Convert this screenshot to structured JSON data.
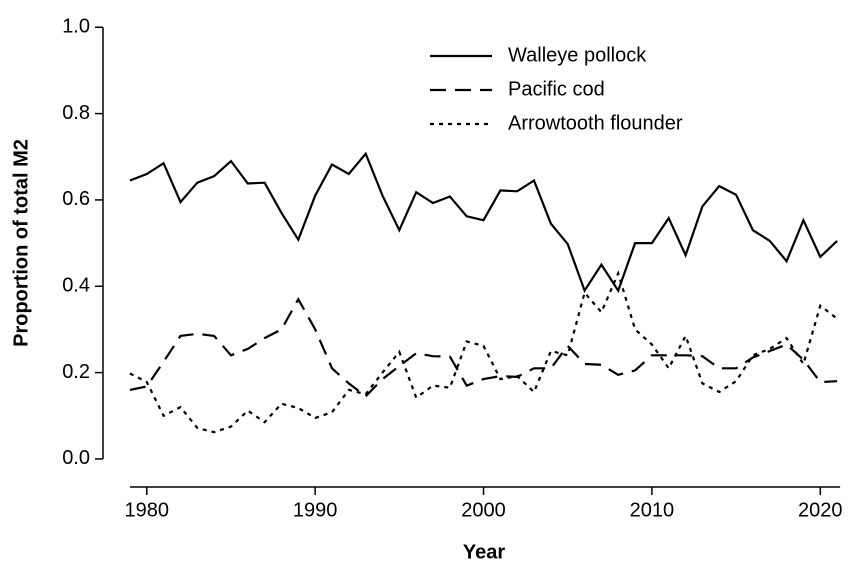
{
  "chart_data": {
    "type": "line",
    "xlabel": "Year",
    "ylabel": "Proportion of total M2",
    "x": [
      1979,
      1980,
      1981,
      1982,
      1983,
      1984,
      1985,
      1986,
      1987,
      1988,
      1989,
      1990,
      1991,
      1992,
      1993,
      1994,
      1995,
      1996,
      1997,
      1998,
      1999,
      2000,
      2001,
      2002,
      2003,
      2004,
      2005,
      2006,
      2007,
      2008,
      2009,
      2010,
      2011,
      2012,
      2013,
      2014,
      2015,
      2016,
      2017,
      2018,
      2019,
      2020,
      2021
    ],
    "series": [
      {
        "name": "Walleye pollock",
        "color": "#000000",
        "linestyle": "solid",
        "values": [
          0.645,
          0.66,
          0.685,
          0.595,
          0.64,
          0.655,
          0.69,
          0.638,
          0.64,
          0.57,
          0.508,
          0.61,
          0.682,
          0.66,
          0.707,
          0.61,
          0.53,
          0.618,
          0.593,
          0.608,
          0.562,
          0.553,
          0.622,
          0.62,
          0.645,
          0.545,
          0.498,
          0.39,
          0.45,
          0.39,
          0.5,
          0.5,
          0.558,
          0.472,
          0.585,
          0.632,
          0.612,
          0.53,
          0.505,
          0.458,
          0.553,
          0.468,
          0.505
        ]
      },
      {
        "name": "Pacific cod",
        "color": "#000000",
        "linestyle": "dashed",
        "values": [
          0.16,
          0.168,
          0.225,
          0.285,
          0.29,
          0.285,
          0.24,
          0.255,
          0.28,
          0.3,
          0.37,
          0.3,
          0.21,
          0.175,
          0.145,
          0.185,
          0.215,
          0.245,
          0.238,
          0.237,
          0.17,
          0.185,
          0.192,
          0.19,
          0.21,
          0.21,
          0.262,
          0.22,
          0.218,
          0.195,
          0.205,
          0.24,
          0.24,
          0.24,
          0.238,
          0.21,
          0.21,
          0.235,
          0.25,
          0.265,
          0.23,
          0.178,
          0.18
        ]
      },
      {
        "name": "Arrowtooth flounder",
        "color": "#000000",
        "linestyle": "dotted",
        "values": [
          0.198,
          0.178,
          0.1,
          0.12,
          0.072,
          0.062,
          0.075,
          0.112,
          0.085,
          0.128,
          0.118,
          0.095,
          0.108,
          0.16,
          0.15,
          0.2,
          0.248,
          0.142,
          0.17,
          0.165,
          0.272,
          0.262,
          0.185,
          0.192,
          0.155,
          0.25,
          0.24,
          0.385,
          0.34,
          0.43,
          0.3,
          0.265,
          0.21,
          0.285,
          0.175,
          0.155,
          0.18,
          0.24,
          0.255,
          0.28,
          0.22,
          0.355,
          0.325
        ]
      }
    ],
    "xlim": [
      1977.4,
      2022.3
    ],
    "xticks": [
      1980,
      1990,
      2000,
      2010,
      2020
    ],
    "ylim": [
      -0.065,
      1.04
    ],
    "yticks": [
      {
        "value": 0,
        "label": "0.0"
      },
      {
        "value": 0.2,
        "label": "0.2"
      },
      {
        "value": 0.4,
        "label": "0.4"
      },
      {
        "value": 0.6,
        "label": "0.6"
      },
      {
        "value": 0.8,
        "label": "0.8"
      },
      {
        "value": 1,
        "label": "1.0"
      }
    ],
    "legend": "top"
  }
}
